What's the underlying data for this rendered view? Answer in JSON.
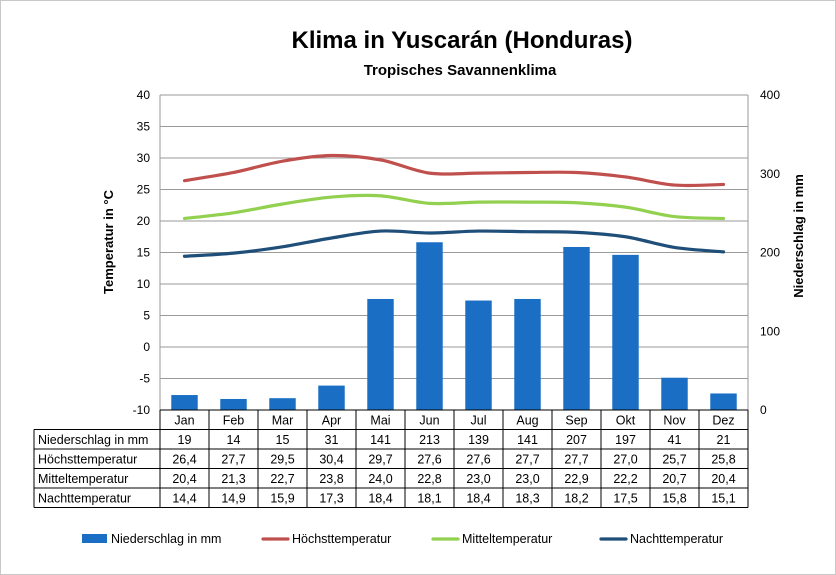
{
  "chart_data": {
    "type": "bar",
    "title": "Klima in Yuscarán (Honduras)",
    "subtitle": "Tropisches Savannenklima",
    "ylabel_left": "Temperatur in °C",
    "ylabel_right": "Niederschlag in mm",
    "ylim_left": [
      -10,
      40
    ],
    "ylim_right": [
      0,
      400
    ],
    "yticks_left": [
      "40",
      "35",
      "30",
      "25",
      "20",
      "15",
      "10",
      "5",
      "0",
      "-5",
      "-10"
    ],
    "yticks_right": [
      "400",
      "300",
      "200",
      "100",
      "0"
    ],
    "grid": true,
    "legend_position": "bottom",
    "categories": [
      "Jan",
      "Feb",
      "Mar",
      "Apr",
      "Mai",
      "Jun",
      "Jul",
      "Aug",
      "Sep",
      "Okt",
      "Nov",
      "Dez"
    ],
    "series": [
      {
        "name": "Niederschlag in mm",
        "type": "bar",
        "axis": "right",
        "color": "#1a6fc4",
        "values": [
          19,
          14,
          15,
          31,
          141,
          213,
          139,
          141,
          207,
          197,
          41,
          21
        ],
        "labels": [
          "19",
          "14",
          "15",
          "31",
          "141",
          "213",
          "139",
          "141",
          "207",
          "197",
          "41",
          "21"
        ]
      },
      {
        "name": "Höchsttemperatur",
        "type": "line",
        "axis": "left",
        "color": "#c0504d",
        "values": [
          26.4,
          27.7,
          29.5,
          30.4,
          29.7,
          27.6,
          27.6,
          27.7,
          27.7,
          27.0,
          25.7,
          25.8
        ],
        "labels": [
          "26,4",
          "27,7",
          "29,5",
          "30,4",
          "29,7",
          "27,6",
          "27,6",
          "27,7",
          "27,7",
          "27,0",
          "25,7",
          "25,8"
        ]
      },
      {
        "name": "Mitteltemperatur",
        "type": "line",
        "axis": "left",
        "color": "#92d050",
        "values": [
          20.4,
          21.3,
          22.7,
          23.8,
          24.0,
          22.8,
          23.0,
          23.0,
          22.9,
          22.2,
          20.7,
          20.4
        ],
        "labels": [
          "20,4",
          "21,3",
          "22,7",
          "23,8",
          "24,0",
          "22,8",
          "23,0",
          "23,0",
          "22,9",
          "22,2",
          "20,7",
          "20,4"
        ]
      },
      {
        "name": "Nachttemperatur",
        "type": "line",
        "axis": "left",
        "color": "#1f4e79",
        "values": [
          14.4,
          14.9,
          15.9,
          17.3,
          18.4,
          18.1,
          18.4,
          18.3,
          18.2,
          17.5,
          15.8,
          15.1
        ],
        "labels": [
          "14,4",
          "14,9",
          "15,9",
          "17,3",
          "18,4",
          "18,1",
          "18,4",
          "18,3",
          "18,2",
          "17,5",
          "15,8",
          "15,1"
        ]
      }
    ]
  }
}
